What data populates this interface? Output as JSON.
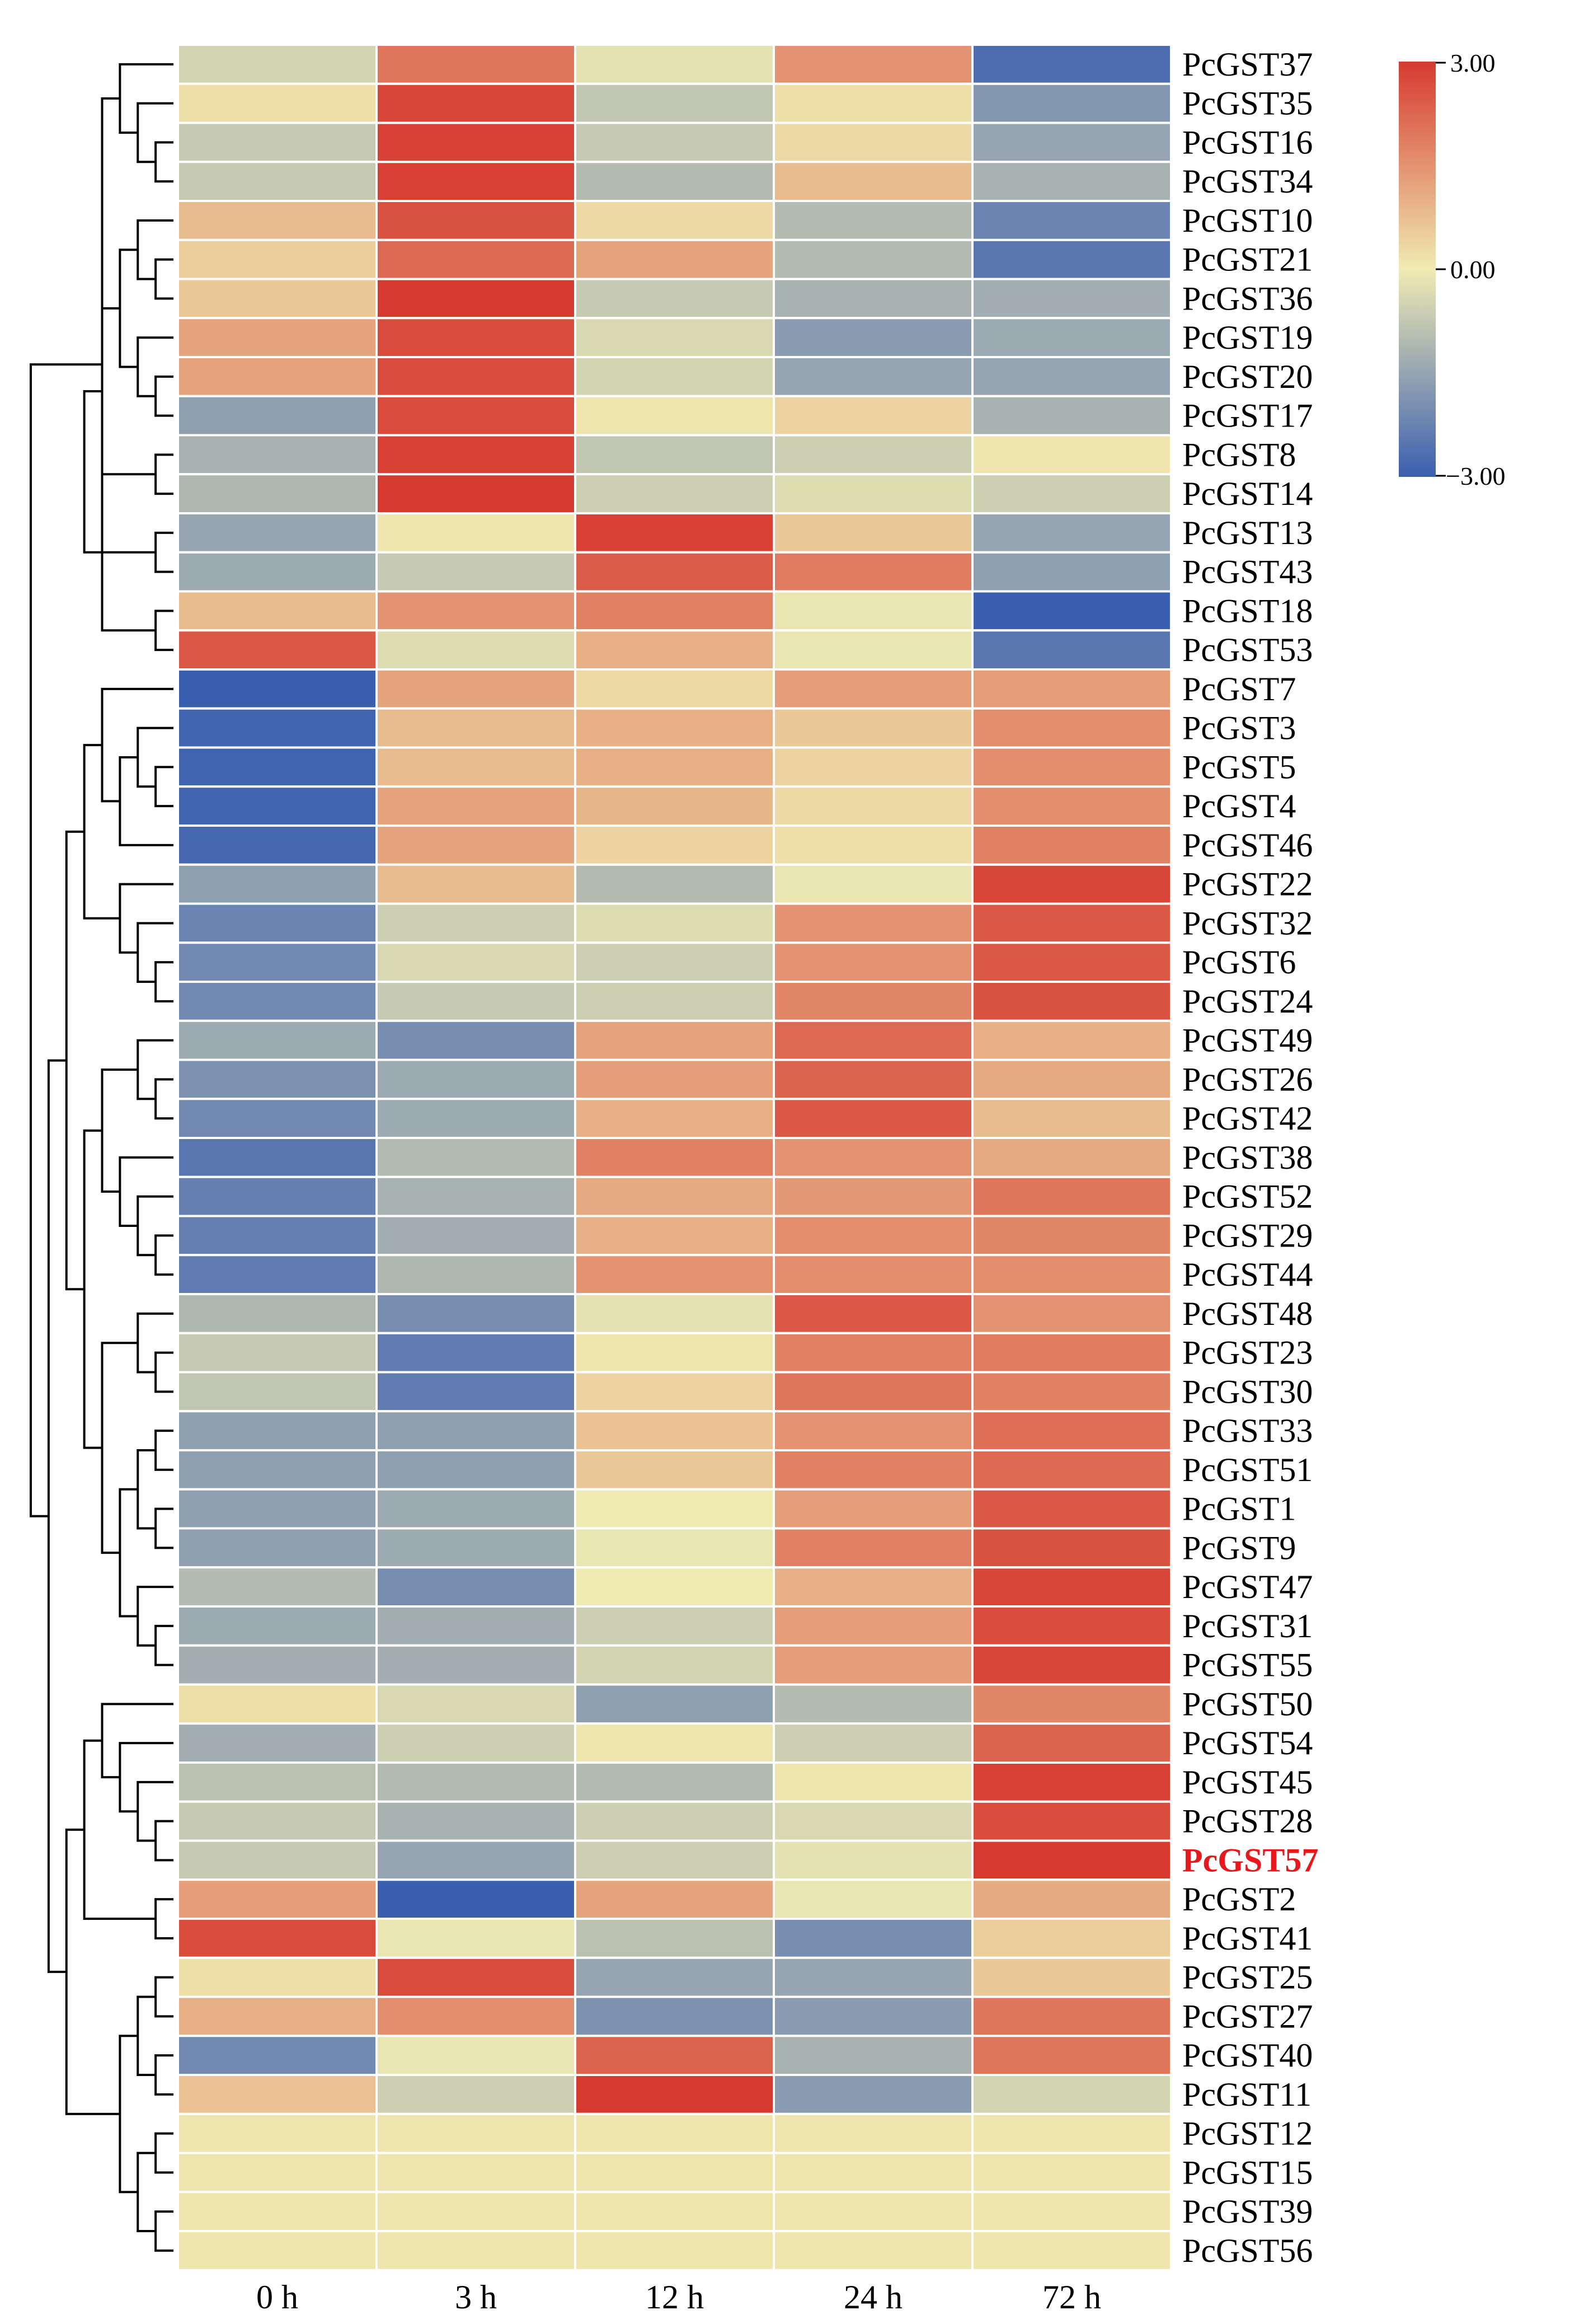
{
  "chart_data": {
    "type": "heatmap",
    "title": "",
    "columns": [
      "0 h",
      "3 h",
      "12 h",
      "24 h",
      "72 h"
    ],
    "rows": [
      "PcGST37",
      "PcGST35",
      "PcGST16",
      "PcGST34",
      "PcGST10",
      "PcGST21",
      "PcGST36",
      "PcGST19",
      "PcGST20",
      "PcGST17",
      "PcGST8",
      "PcGST14",
      "PcGST13",
      "PcGST43",
      "PcGST18",
      "PcGST53",
      "PcGST7",
      "PcGST3",
      "PcGST5",
      "PcGST4",
      "PcGST46",
      "PcGST22",
      "PcGST32",
      "PcGST6",
      "PcGST24",
      "PcGST49",
      "PcGST26",
      "PcGST42",
      "PcGST38",
      "PcGST52",
      "PcGST29",
      "PcGST44",
      "PcGST48",
      "PcGST23",
      "PcGST30",
      "PcGST33",
      "PcGST51",
      "PcGST1",
      "PcGST9",
      "PcGST47",
      "PcGST31",
      "PcGST55",
      "PcGST50",
      "PcGST54",
      "PcGST45",
      "PcGST28",
      "PcGST57",
      "PcGST2",
      "PcGST41",
      "PcGST25",
      "PcGST27",
      "PcGST40",
      "PcGST11",
      "PcGST12",
      "PcGST15",
      "PcGST39",
      "PcGST56"
    ],
    "highlight_row": "PcGST57",
    "highlight_color": "#e8171b",
    "values": [
      [
        -0.5,
        2.0,
        -0.2,
        1.5,
        -2.7
      ],
      [
        0.2,
        2.8,
        -0.8,
        0.2,
        -1.8
      ],
      [
        -0.7,
        2.9,
        -0.7,
        0.3,
        -1.5
      ],
      [
        -0.7,
        2.9,
        -1.0,
        0.8,
        -1.2
      ],
      [
        0.8,
        2.6,
        0.3,
        -1.0,
        -2.2
      ],
      [
        0.5,
        2.2,
        1.2,
        -1.0,
        -2.5
      ],
      [
        0.6,
        3.0,
        -0.7,
        -1.2,
        -1.3
      ],
      [
        1.2,
        2.7,
        -0.4,
        -1.7,
        -1.4
      ],
      [
        1.2,
        2.7,
        -0.5,
        -1.5,
        -1.5
      ],
      [
        -1.6,
        2.7,
        0.1,
        0.4,
        -1.2
      ],
      [
        -1.2,
        2.9,
        -0.8,
        -0.6,
        0.1
      ],
      [
        -1.1,
        3.0,
        -0.6,
        -0.3,
        -0.6
      ],
      [
        -1.5,
        0.1,
        2.9,
        0.6,
        -1.5
      ],
      [
        -1.4,
        -0.7,
        2.4,
        1.9,
        -1.6
      ],
      [
        0.8,
        1.5,
        1.8,
        -0.1,
        -3.0
      ],
      [
        2.5,
        -0.3,
        1.0,
        -0.1,
        -2.5
      ],
      [
        -3.0,
        1.2,
        0.3,
        1.3,
        1.3
      ],
      [
        -2.9,
        0.8,
        1.0,
        0.6,
        1.6
      ],
      [
        -2.9,
        0.8,
        1.0,
        0.4,
        1.6
      ],
      [
        -2.9,
        1.2,
        0.9,
        0.3,
        1.6
      ],
      [
        -2.8,
        1.2,
        0.4,
        0.2,
        1.8
      ],
      [
        -1.6,
        0.8,
        -1.0,
        -0.1,
        2.8
      ],
      [
        -2.2,
        -0.6,
        -0.3,
        1.5,
        2.5
      ],
      [
        -2.1,
        -0.4,
        -0.6,
        1.5,
        2.5
      ],
      [
        -2.1,
        -0.7,
        -0.6,
        1.7,
        2.6
      ],
      [
        -1.4,
        -2.0,
        1.2,
        2.2,
        1.0
      ],
      [
        -1.9,
        -1.4,
        1.3,
        2.3,
        1.1
      ],
      [
        -2.1,
        -1.4,
        1.0,
        2.5,
        0.8
      ],
      [
        -2.5,
        -1.0,
        1.8,
        1.5,
        1.1
      ],
      [
        -2.3,
        -1.2,
        1.1,
        1.4,
        2.0
      ],
      [
        -2.3,
        -1.3,
        1.0,
        1.6,
        1.7
      ],
      [
        -2.4,
        -1.1,
        1.5,
        1.6,
        1.6
      ],
      [
        -1.1,
        -2.0,
        -0.2,
        2.5,
        1.5
      ],
      [
        -0.7,
        -2.4,
        0.1,
        1.8,
        1.9
      ],
      [
        -0.8,
        -2.4,
        0.4,
        2.0,
        1.8
      ],
      [
        -1.6,
        -1.6,
        0.7,
        1.5,
        2.1
      ],
      [
        -1.6,
        -1.6,
        0.6,
        1.8,
        2.2
      ],
      [
        -1.6,
        -1.4,
        0.0,
        1.3,
        2.5
      ],
      [
        -1.6,
        -1.4,
        -0.1,
        1.8,
        2.6
      ],
      [
        -1.0,
        -2.0,
        0.0,
        1.0,
        2.8
      ],
      [
        -1.4,
        -1.3,
        -0.6,
        1.3,
        2.7
      ],
      [
        -1.3,
        -1.3,
        -0.5,
        1.3,
        2.8
      ],
      [
        0.2,
        -0.4,
        -1.6,
        -1.0,
        1.7
      ],
      [
        -1.3,
        -0.6,
        0.1,
        -0.6,
        2.3
      ],
      [
        -0.9,
        -1.0,
        -1.0,
        0.1,
        2.9
      ],
      [
        -0.7,
        -1.2,
        -0.6,
        -0.4,
        2.7
      ],
      [
        -0.7,
        -1.5,
        -0.6,
        -0.2,
        3.0
      ],
      [
        1.3,
        -3.0,
        1.2,
        -0.1,
        1.1
      ],
      [
        2.7,
        -0.1,
        -0.9,
        -2.0,
        0.5
      ],
      [
        0.2,
        2.7,
        -1.5,
        -1.5,
        0.6
      ],
      [
        1.0,
        1.6,
        -1.9,
        -1.7,
        2.0
      ],
      [
        -2.1,
        -0.1,
        2.3,
        -1.2,
        2.0
      ],
      [
        0.7,
        -0.6,
        3.0,
        -1.7,
        -0.5
      ],
      [
        0.1,
        0.1,
        0.1,
        0.1,
        0.1
      ],
      [
        0.1,
        0.1,
        0.1,
        0.1,
        0.1
      ],
      [
        0.1,
        0.1,
        0.1,
        0.1,
        0.1
      ],
      [
        0.1,
        0.1,
        0.1,
        0.1,
        0.1
      ]
    ],
    "color_scale": {
      "min": -3.0,
      "mid": 0.0,
      "max": 3.0,
      "colors": [
        "#3b5fb0",
        "#f0ebb2",
        "#d63a2f"
      ],
      "tick_labels": [
        "3.00",
        "0.00",
        "−3.00"
      ]
    },
    "dendrogram_merges": [
      [
        2,
        3
      ],
      [
        1,
        -1
      ],
      [
        5,
        6
      ],
      [
        8,
        9
      ],
      [
        7,
        -4
      ],
      [
        4,
        -3
      ],
      [
        10,
        11
      ],
      [
        -5,
        -6
      ],
      [
        0,
        -2
      ],
      [
        -7,
        -8
      ],
      [
        12,
        13
      ],
      [
        14,
        15
      ],
      [
        -10,
        -11
      ],
      [
        -9,
        -12
      ],
      [
        18,
        19
      ],
      [
        17,
        -15
      ],
      [
        20,
        -16
      ],
      [
        16,
        -17
      ],
      [
        23,
        24
      ],
      [
        22,
        -19
      ],
      [
        21,
        -20
      ],
      [
        -18,
        -21
      ],
      [
        26,
        27
      ],
      [
        25,
        -23
      ],
      [
        30,
        31
      ],
      [
        29,
        -25
      ],
      [
        28,
        -26
      ],
      [
        -24,
        -27
      ],
      [
        33,
        34
      ],
      [
        32,
        -29
      ],
      [
        35,
        36
      ],
      [
        37,
        38
      ],
      [
        -31,
        -32
      ],
      [
        40,
        41
      ],
      [
        39,
        -34
      ],
      [
        -33,
        -35
      ],
      [
        -30,
        -36
      ],
      [
        -28,
        -37
      ],
      [
        -22,
        -38
      ],
      [
        45,
        46
      ],
      [
        44,
        -40
      ],
      [
        43,
        -41
      ],
      [
        42,
        -42
      ],
      [
        47,
        48
      ],
      [
        -43,
        -44
      ],
      [
        49,
        50
      ],
      [
        51,
        52
      ],
      [
        -46,
        -47
      ],
      [
        53,
        54
      ],
      [
        55,
        56
      ],
      [
        -49,
        -50
      ],
      [
        -48,
        -51
      ],
      [
        -45,
        -52
      ],
      [
        -39,
        -53
      ],
      [
        -14,
        -54
      ]
    ]
  }
}
